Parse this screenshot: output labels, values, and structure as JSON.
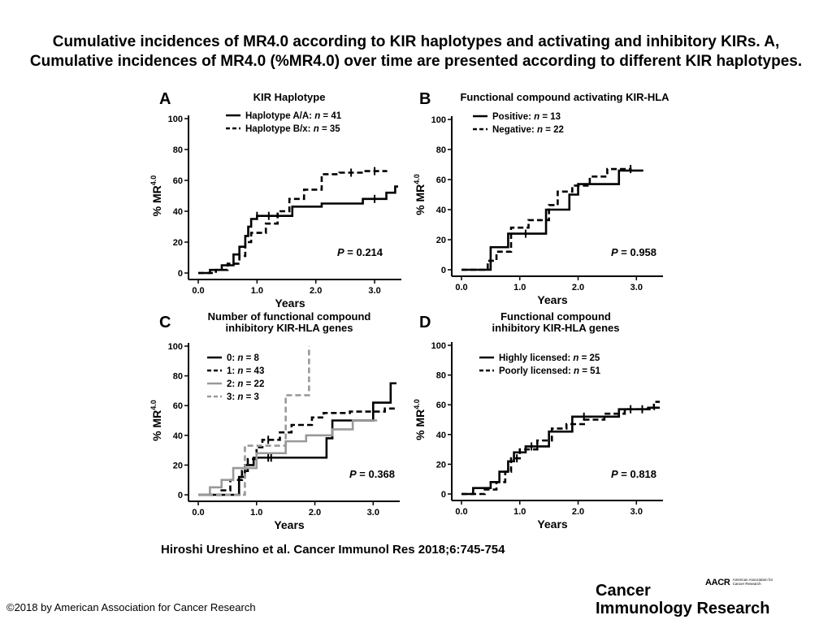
{
  "slide": {
    "title": "Cumulative incidences of MR4.0 according to KIR haplotypes and activating and inhibitory KIRs. A, Cumulative incidences of MR4.0 (%MR4.0) over time are presented according to different KIR haplotypes.",
    "citation": "Hiroshi Ureshino et al. Cancer Immunol Res 2018;6:745-754",
    "copyright": "©2018 by American Association for Cancer Research",
    "journal_line1": "Cancer",
    "journal_line2": "Immunology Research",
    "org_mark": "AACR",
    "org_name": "American Association for Cancer Research"
  },
  "colors": {
    "black": "#000000",
    "gray": "#999999"
  },
  "chart_data": [
    {
      "panel": "A",
      "type": "line",
      "title": [
        "KIR Haplotype"
      ],
      "xlabel": "Years",
      "ylabel": "% MR",
      "ylabel_sup": "4.0",
      "xlim": [
        0,
        3.4
      ],
      "ylim": [
        0,
        100
      ],
      "xticks": [
        "0.0",
        "1.0",
        "2.0",
        "3.0"
      ],
      "yticks": [
        "0",
        "20",
        "40",
        "60",
        "80",
        "100"
      ],
      "pvalue": "0.214",
      "pvalue_prefix": "P",
      "series": [
        {
          "label": "Haplotype A/A: ",
          "n": "41",
          "style": "solid",
          "color": "#000000",
          "x": [
            0,
            0.2,
            0.4,
            0.6,
            0.7,
            0.8,
            0.85,
            0.9,
            1.0,
            1.1,
            1.3,
            1.6,
            2.1,
            2.8,
            3.2,
            3.35
          ],
          "y": [
            0,
            2,
            5,
            12,
            17,
            24,
            30,
            35,
            37,
            37,
            37,
            43,
            45,
            48,
            52,
            56
          ],
          "censor_x": [
            1.0,
            1.2,
            3.0
          ]
        },
        {
          "label": "Haplotype B/x: ",
          "n": "35",
          "style": "dashed",
          "color": "#000000",
          "x": [
            0,
            0.3,
            0.5,
            0.7,
            0.8,
            0.9,
            1.15,
            1.35,
            1.55,
            1.8,
            2.1,
            2.4,
            2.8
          ],
          "y": [
            0,
            2,
            6,
            11,
            20,
            26,
            32,
            40,
            48,
            54,
            64,
            65,
            66
          ],
          "censor_x": [
            2.6,
            3.0
          ]
        }
      ]
    },
    {
      "panel": "B",
      "type": "line",
      "title": [
        "Functional compound activating KIR-HLA"
      ],
      "xlabel": "Years",
      "ylabel": "% MR",
      "ylabel_sup": "4.0",
      "xlim": [
        0,
        3.4
      ],
      "ylim": [
        0,
        100
      ],
      "xticks": [
        "0.0",
        "1.0",
        "2.0",
        "3.0"
      ],
      "yticks": [
        "0",
        "20",
        "40",
        "60",
        "80",
        "100"
      ],
      "pvalue": "0.958",
      "pvalue_prefix": "P",
      "series": [
        {
          "label": "Positive: ",
          "n": "13",
          "style": "solid",
          "color": "#000000",
          "x": [
            0,
            0.5,
            0.8,
            1.45,
            1.85,
            2.0,
            2.7
          ],
          "y": [
            0,
            15,
            24,
            40,
            50,
            57,
            66
          ],
          "censor_x": [
            1.1
          ]
        },
        {
          "label": "Negative: ",
          "n": "22",
          "style": "dashed",
          "color": "#000000",
          "x": [
            0,
            0.45,
            0.6,
            0.85,
            1.15,
            1.5,
            1.65,
            1.9,
            2.2,
            2.5
          ],
          "y": [
            0,
            6,
            12,
            28,
            33,
            43,
            52,
            56,
            62,
            67
          ],
          "censor_x": [
            2.9
          ]
        }
      ]
    },
    {
      "panel": "C",
      "type": "line",
      "title": [
        "Number of functional compound",
        "inhibitory KIR-HLA genes"
      ],
      "xlabel": "Years",
      "ylabel": "% MR",
      "ylabel_sup": "4.0",
      "xlim": [
        0,
        3.4
      ],
      "ylim": [
        0,
        100
      ],
      "xticks": [
        "0.0",
        "1.0",
        "2.0",
        "3.0"
      ],
      "yticks": [
        "0",
        "20",
        "40",
        "60",
        "80",
        "100"
      ],
      "pvalue": "0.368",
      "pvalue_prefix": "P",
      "series": [
        {
          "label": "0: ",
          "n": "8",
          "style": "solid",
          "color": "#000000",
          "x": [
            0,
            0.7,
            0.8,
            0.95,
            2.2,
            2.3,
            3.0,
            3.3
          ],
          "y": [
            0,
            12,
            20,
            25,
            38,
            50,
            62,
            75
          ],
          "censor_x": [
            1.2,
            1.25
          ]
        },
        {
          "label": "1: ",
          "n": "43",
          "style": "dashed",
          "color": "#000000",
          "x": [
            0,
            0.4,
            0.55,
            0.75,
            0.85,
            1.0,
            1.1,
            1.4,
            1.6,
            1.95,
            2.15,
            2.6,
            3.2
          ],
          "y": [
            0,
            3,
            10,
            16,
            24,
            32,
            37,
            42,
            47,
            52,
            55,
            56,
            58
          ],
          "censor_x": [
            1.2,
            3.0
          ]
        },
        {
          "label": "2: ",
          "n": "22",
          "style": "solid",
          "color": "#999999",
          "x": [
            0,
            0.2,
            0.4,
            0.6,
            1.0,
            1.5,
            1.85,
            2.3,
            2.65
          ],
          "y": [
            0,
            5,
            10,
            18,
            28,
            36,
            40,
            44,
            50
          ],
          "censor_x": []
        },
        {
          "label": "3: ",
          "n": "3",
          "style": "dashed",
          "color": "#999999",
          "x": [
            0,
            0.8,
            1.5,
            1.9
          ],
          "y": [
            0,
            33,
            67,
            100
          ],
          "censor_x": []
        }
      ]
    },
    {
      "panel": "D",
      "type": "line",
      "title": [
        "Functional compound",
        "inhibitory KIR-HLA genes"
      ],
      "xlabel": "Years",
      "ylabel": "% MR",
      "ylabel_sup": "4.0",
      "xlim": [
        0,
        3.4
      ],
      "ylim": [
        0,
        100
      ],
      "xticks": [
        "0.0",
        "1.0",
        "2.0",
        "3.0"
      ],
      "yticks": [
        "0",
        "20",
        "40",
        "60",
        "80",
        "100"
      ],
      "pvalue": "0.818",
      "pvalue_prefix": "P",
      "series": [
        {
          "label": "Highly licensed: ",
          "n": "25",
          "style": "solid",
          "color": "#000000",
          "x": [
            0,
            0.2,
            0.5,
            0.65,
            0.8,
            0.9,
            1.1,
            1.5,
            1.9,
            2.3,
            2.7,
            3.2
          ],
          "y": [
            0,
            4,
            8,
            15,
            22,
            28,
            32,
            42,
            52,
            52,
            57,
            58
          ],
          "censor_x": [
            1.2,
            1.3,
            2.1
          ]
        },
        {
          "label": "Poorly licensed: ",
          "n": "51",
          "style": "dashed",
          "color": "#000000",
          "x": [
            0,
            0.4,
            0.6,
            0.75,
            0.85,
            1.0,
            1.3,
            1.55,
            1.8,
            2.1,
            2.45,
            2.8,
            3.3
          ],
          "y": [
            0,
            3,
            8,
            15,
            24,
            30,
            36,
            44,
            47,
            50,
            54,
            57,
            62
          ],
          "censor_x": [
            0.95,
            2.9,
            3.1
          ]
        }
      ]
    }
  ]
}
